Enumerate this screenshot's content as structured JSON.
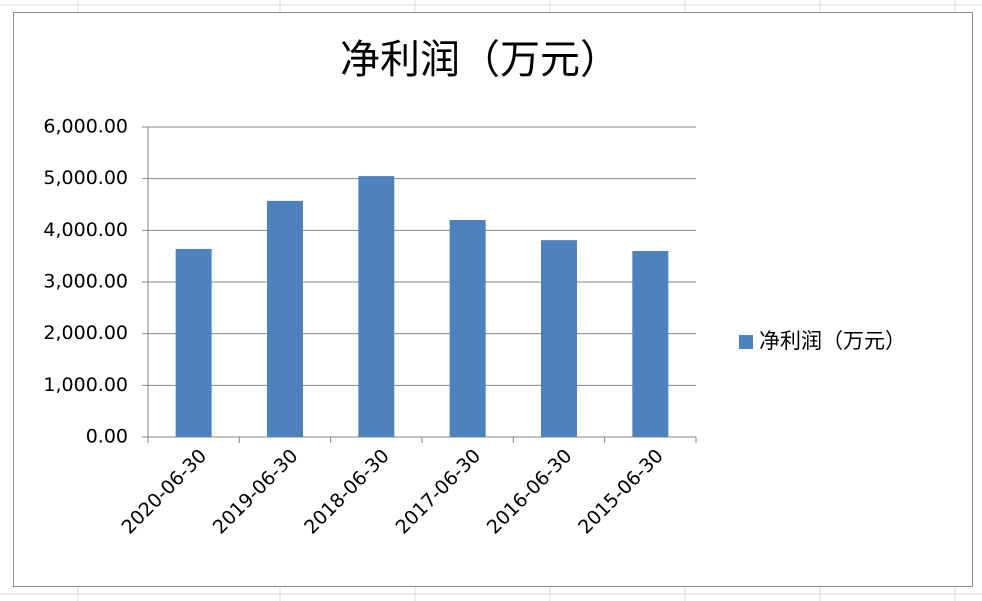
{
  "chart_data": {
    "type": "bar",
    "title": "净利润（万元）",
    "categories": [
      "2020-06-30",
      "2019-06-30",
      "2018-06-30",
      "2017-06-30",
      "2016-06-30",
      "2015-06-30"
    ],
    "series": [
      {
        "name": "净利润（万元）",
        "color": "#4f81bd",
        "values": [
          3640,
          4570,
          5050,
          4200,
          3810,
          3600
        ]
      }
    ],
    "ylim": [
      0,
      6000
    ],
    "yticks": [
      {
        "value": 0,
        "label": "0.00"
      },
      {
        "value": 1000,
        "label": "1,000.00"
      },
      {
        "value": 2000,
        "label": "2,000.00"
      },
      {
        "value": 3000,
        "label": "3,000.00"
      },
      {
        "value": 4000,
        "label": "4,000.00"
      },
      {
        "value": 5000,
        "label": "5,000.00"
      },
      {
        "value": 6000,
        "label": "6,000.00"
      }
    ],
    "grid": true,
    "legend": "right"
  }
}
